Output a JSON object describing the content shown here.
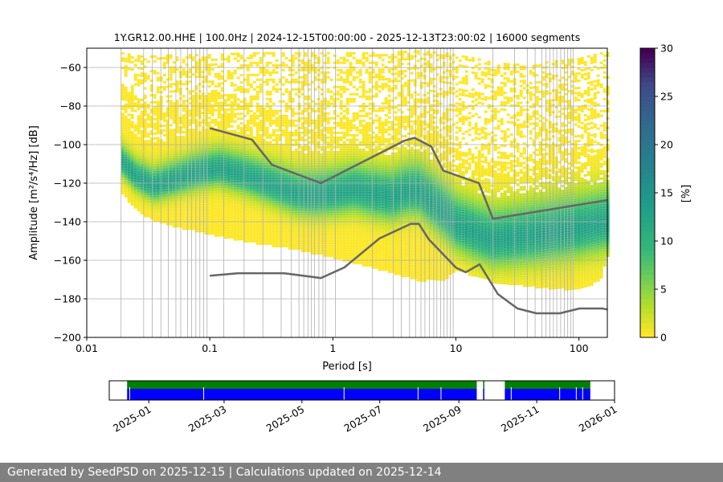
{
  "chart_data": {
    "type": "heatmap",
    "title": "1Y.GR12.00.HHE | 100.0Hz | 2024-12-15T00:00:00 - 2025-12-13T23:00:02 | 16000 segments",
    "xlabel": "Period [s]",
    "ylabel": "Amplitude [m²/s⁴/Hz] [dB]",
    "xscale": "log",
    "xlim": [
      0.01,
      170
    ],
    "ylim": [
      -200,
      -50
    ],
    "x_ticks": [
      {
        "v": 0.01,
        "label": "0.01"
      },
      {
        "v": 0.1,
        "label": "0.1"
      },
      {
        "v": 1,
        "label": "1"
      },
      {
        "v": 10,
        "label": "10"
      },
      {
        "v": 100,
        "label": "100"
      }
    ],
    "y_ticks": [
      {
        "v": -60,
        "label": "−60"
      },
      {
        "v": -80,
        "label": "−80"
      },
      {
        "v": -100,
        "label": "−100"
      },
      {
        "v": -120,
        "label": "−120"
      },
      {
        "v": -140,
        "label": "−140"
      },
      {
        "v": -160,
        "label": "−160"
      },
      {
        "v": -180,
        "label": "−180"
      },
      {
        "v": -200,
        "label": "−200"
      }
    ],
    "grid": true,
    "density_mode_curve": {
      "period": [
        0.019,
        0.025,
        0.035,
        0.05,
        0.08,
        0.12,
        0.2,
        0.3,
        0.5,
        0.7,
        1,
        1.5,
        2,
        3,
        4,
        5,
        6,
        8,
        10,
        15,
        20,
        30,
        50,
        100,
        170
      ],
      "amplitude_db": [
        -108,
        -116,
        -121,
        -118,
        -114,
        -112,
        -116,
        -120,
        -125,
        -126,
        -125,
        -123,
        -125,
        -127,
        -124,
        -124,
        -128,
        -135,
        -141,
        -146,
        -149,
        -148,
        -146,
        -143,
        -140
      ]
    },
    "density_envelope": {
      "period": [
        0.019,
        0.03,
        0.05,
        0.1,
        0.2,
        0.5,
        1,
        2,
        5,
        8,
        10,
        15,
        20,
        30,
        50,
        100,
        150,
        170
      ],
      "upper_db": [
        -52,
        -54,
        -53,
        -53,
        -52,
        -52,
        -52,
        -52,
        -51,
        -52,
        -53,
        -55,
        -57,
        -58,
        -57,
        -55,
        -52,
        -52
      ],
      "lower_db": [
        -125,
        -137,
        -142,
        -146,
        -150,
        -154,
        -158,
        -163,
        -170,
        -170,
        -165,
        -168,
        -171,
        -172,
        -174,
        -175,
        -170,
        -158
      ]
    },
    "nhnm": {
      "period": [
        0.1,
        0.22,
        0.32,
        0.8,
        3.8,
        4.6,
        6.3,
        7.9,
        15.4,
        20,
        170
      ],
      "amplitude_db": [
        -91.5,
        -97.4,
        -110.5,
        -120,
        -98,
        -96.5,
        -101,
        -113.5,
        -120,
        -138.5,
        -128.8
      ]
    },
    "nlnm": {
      "period": [
        0.1,
        0.17,
        0.4,
        0.8,
        1.24,
        2.4,
        4.3,
        5,
        6,
        10,
        12,
        15.6,
        21.9,
        31.6,
        45,
        70,
        101,
        154,
        170
      ],
      "amplitude_db": [
        -168,
        -166.7,
        -166.7,
        -169.2,
        -163.7,
        -148.6,
        -141.1,
        -141.1,
        -149,
        -163.8,
        -166.2,
        -162.1,
        -177.5,
        -185,
        -187.5,
        -187.5,
        -185,
        -185,
        -185.5
      ]
    },
    "period_gridlines": [
      0.019,
      0.029,
      0.034,
      0.04,
      0.046,
      0.053,
      0.058,
      0.066,
      0.071,
      0.077,
      0.083,
      0.089,
      0.095,
      0.13,
      0.19,
      0.27,
      0.38,
      0.46,
      0.53,
      0.58,
      0.63,
      0.67,
      0.71,
      0.77,
      0.83,
      0.87,
      1.05,
      2.1,
      3.1,
      3.6,
      4.2,
      4.7,
      5.2,
      5.6,
      6.1,
      6.6,
      7.0,
      7.5,
      8.0,
      8.5,
      9.0,
      9.5,
      20,
      30,
      38,
      44,
      50,
      54,
      58,
      62,
      66,
      71,
      76,
      81,
      86,
      90
    ],
    "colorbar": {
      "label": "[%]",
      "min": 0,
      "max": 30,
      "ticks": [
        "0",
        "5",
        "10",
        "15",
        "20",
        "25",
        "30"
      ],
      "colormap": "viridis_r"
    },
    "availability": {
      "x_ticks": [
        "2025-01",
        "2025-03",
        "2025-05",
        "2025-07",
        "2025-09",
        "2025-11",
        "2026-01"
      ],
      "x_range": [
        "2024-12-01",
        "2026-01-01"
      ],
      "data_span": [
        "2024-12-15",
        "2025-12-13"
      ],
      "gaps": [
        [
          "2025-09-15",
          "2025-09-20"
        ],
        [
          "2025-09-21",
          "2025-10-07"
        ]
      ],
      "colors": {
        "green": "#008000",
        "blue": "#0000ff"
      }
    }
  },
  "footer": {
    "text": "Generated by SeedPSD on 2025-12-15 | Calculations updated on 2025-12-14"
  }
}
